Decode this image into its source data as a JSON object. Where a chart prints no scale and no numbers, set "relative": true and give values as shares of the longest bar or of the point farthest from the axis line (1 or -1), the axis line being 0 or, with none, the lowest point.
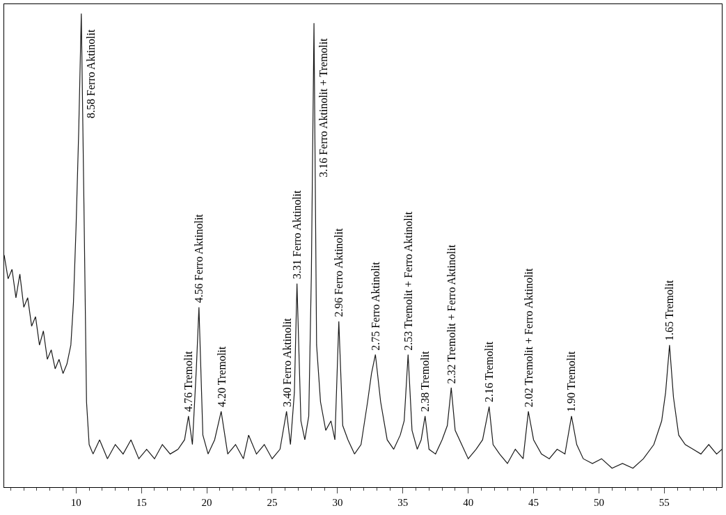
{
  "chart_data": {
    "type": "line",
    "relative": true,
    "tick_labels": "x",
    "marker": "none",
    "line_style": "solid",
    "xlim": [
      4.5,
      59.4
    ],
    "xticks": [
      10,
      15,
      20,
      25,
      30,
      35,
      40,
      45,
      50,
      55
    ],
    "series": [
      {
        "color": "#1a1a1a",
        "x": [
          4.5,
          4.8,
          5.1,
          5.4,
          5.7,
          6.0,
          6.3,
          6.6,
          6.9,
          7.2,
          7.5,
          7.8,
          8.1,
          8.4,
          8.7,
          9.0,
          9.3,
          9.6,
          9.8,
          10.0,
          10.2,
          10.4,
          10.6,
          10.8,
          11.0,
          11.3,
          11.8,
          12.4,
          13.0,
          13.6,
          14.2,
          14.8,
          15.4,
          16.0,
          16.6,
          17.2,
          17.8,
          18.3,
          18.6,
          18.9,
          19.2,
          19.4,
          19.7,
          20.1,
          20.6,
          21.1,
          21.6,
          22.2,
          22.8,
          23.2,
          23.8,
          24.4,
          25.0,
          25.6,
          26.1,
          26.4,
          26.7,
          26.9,
          27.2,
          27.5,
          27.8,
          28.0,
          28.2,
          28.4,
          28.7,
          29.1,
          29.5,
          29.8,
          30.1,
          30.4,
          30.8,
          31.3,
          31.8,
          32.3,
          32.6,
          32.9,
          33.3,
          33.8,
          34.3,
          34.8,
          35.1,
          35.4,
          35.7,
          36.1,
          36.4,
          36.7,
          37.0,
          37.5,
          38.0,
          38.4,
          38.7,
          39.0,
          39.5,
          40.0,
          40.6,
          41.1,
          41.6,
          41.9,
          42.4,
          43.0,
          43.6,
          44.2,
          44.6,
          45.0,
          45.6,
          46.2,
          46.8,
          47.4,
          47.9,
          48.3,
          48.8,
          49.5,
          50.2,
          51.0,
          51.8,
          52.6,
          53.4,
          54.2,
          54.8,
          55.1,
          55.4,
          55.7,
          56.1,
          56.6,
          57.2,
          57.8,
          58.4,
          59.0,
          59.4
        ],
        "values": [
          0.49,
          0.44,
          0.46,
          0.4,
          0.45,
          0.38,
          0.4,
          0.34,
          0.36,
          0.3,
          0.33,
          0.27,
          0.29,
          0.25,
          0.27,
          0.24,
          0.26,
          0.3,
          0.39,
          0.55,
          0.75,
          1.0,
          0.6,
          0.18,
          0.09,
          0.07,
          0.1,
          0.06,
          0.09,
          0.07,
          0.1,
          0.06,
          0.08,
          0.06,
          0.09,
          0.07,
          0.08,
          0.1,
          0.15,
          0.09,
          0.25,
          0.38,
          0.11,
          0.07,
          0.1,
          0.16,
          0.07,
          0.09,
          0.06,
          0.11,
          0.07,
          0.09,
          0.06,
          0.08,
          0.16,
          0.09,
          0.2,
          0.43,
          0.14,
          0.1,
          0.15,
          0.45,
          0.98,
          0.3,
          0.18,
          0.12,
          0.14,
          0.1,
          0.35,
          0.13,
          0.1,
          0.07,
          0.09,
          0.18,
          0.24,
          0.28,
          0.18,
          0.1,
          0.08,
          0.11,
          0.14,
          0.28,
          0.12,
          0.08,
          0.1,
          0.15,
          0.08,
          0.07,
          0.1,
          0.13,
          0.21,
          0.12,
          0.09,
          0.06,
          0.08,
          0.1,
          0.17,
          0.09,
          0.07,
          0.05,
          0.08,
          0.06,
          0.16,
          0.1,
          0.07,
          0.06,
          0.08,
          0.07,
          0.15,
          0.09,
          0.06,
          0.05,
          0.06,
          0.04,
          0.05,
          0.04,
          0.06,
          0.09,
          0.14,
          0.2,
          0.3,
          0.19,
          0.11,
          0.09,
          0.08,
          0.07,
          0.09,
          0.07,
          0.08
        ]
      }
    ],
    "annotations": [
      {
        "text": "8.58 Ferro Aktinolit",
        "x": 10.4,
        "y": 1.0
      },
      {
        "text": "4.76 Tremolit",
        "x": 18.6,
        "y": 0.15
      },
      {
        "text": "4.56 Ferro Aktinolit",
        "x": 19.4,
        "y": 0.38
      },
      {
        "text": "4.20 Tremolit",
        "x": 21.1,
        "y": 0.16
      },
      {
        "text": "3.40 Ferro Aktinolit",
        "x": 26.1,
        "y": 0.16
      },
      {
        "text": "3.31 Ferro Aktinolit",
        "x": 26.9,
        "y": 0.43
      },
      {
        "text": "3.16 Ferro Aktinolit + Tremolit",
        "x": 28.2,
        "y": 0.98
      },
      {
        "text": "2.96 Ferro Aktinolit",
        "x": 30.1,
        "y": 0.35
      },
      {
        "text": "2.75 Ferro Aktinolit",
        "x": 32.9,
        "y": 0.28
      },
      {
        "text": "2.53 Tremolit + Ferro Aktinolit",
        "x": 35.4,
        "y": 0.28
      },
      {
        "text": "2.38 Tremolit",
        "x": 36.7,
        "y": 0.15
      },
      {
        "text": "2.32 Tremolit + Ferro Aktinolit",
        "x": 38.7,
        "y": 0.21
      },
      {
        "text": "2.16 Tremolit",
        "x": 41.6,
        "y": 0.17
      },
      {
        "text": "2.02 Tremolit + Ferro Aktinolit",
        "x": 44.6,
        "y": 0.16
      },
      {
        "text": "1.90 Tremolit",
        "x": 47.9,
        "y": 0.15
      },
      {
        "text": "1.65 Tremolit",
        "x": 55.4,
        "y": 0.3
      }
    ]
  }
}
